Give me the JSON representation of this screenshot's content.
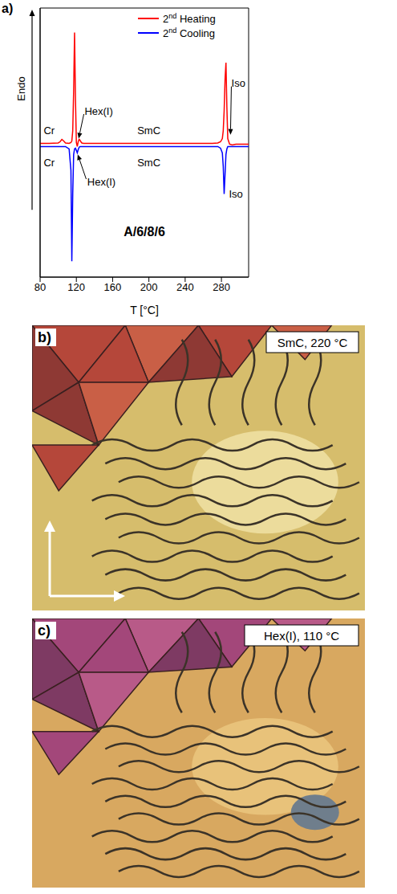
{
  "chart_data": {
    "type": "line",
    "panel": "a)",
    "subtitle": "A/6/8/6",
    "xlabel": "T [°C]",
    "ylabel": "Endo",
    "x": [
      80,
      90,
      100,
      102,
      104,
      106,
      108,
      112,
      114,
      115,
      116,
      117,
      118,
      119,
      120,
      121,
      122,
      123,
      124,
      125,
      126,
      128,
      132,
      140,
      160,
      200,
      240,
      270,
      276,
      279,
      281,
      282,
      283,
      284,
      285,
      286,
      287,
      289,
      292,
      296,
      300,
      305,
      310
    ],
    "series": [
      {
        "name": "2nd Heating",
        "color": "#ff0000",
        "values": [
          0.04,
          0.04,
          0.045,
          0.06,
          0.09,
          0.07,
          0.045,
          0.04,
          0.05,
          0.07,
          0.2,
          0.7,
          1.44,
          0.6,
          0.05,
          0,
          0.06,
          0.09,
          0.08,
          0.06,
          0.045,
          0.04,
          0.04,
          0.04,
          0.04,
          0.04,
          0.04,
          0.04,
          0.045,
          0.06,
          0.1,
          0.2,
          0.45,
          0.85,
          1.06,
          0.5,
          0.1,
          0.03,
          0.02,
          0.03,
          0.03,
          0.03,
          0.03
        ]
      },
      {
        "name": "2nd Cooling",
        "color": "#0000ff",
        "values": [
          0,
          0,
          0,
          0,
          0,
          0,
          0,
          -0.03,
          -0.3,
          -1.45,
          -0.6,
          -0.1,
          -0.03,
          -0.02,
          -0.05,
          -0.08,
          -0.04,
          -0.01,
          0,
          0,
          0,
          0,
          0,
          0,
          0,
          0,
          0,
          0,
          0,
          -0.02,
          -0.08,
          -0.25,
          -0.6,
          -0.35,
          -0.1,
          -0.03,
          0,
          0,
          0,
          0,
          0,
          0,
          0
        ]
      }
    ],
    "xlim": [
      80,
      310
    ],
    "xticks": [
      80,
      120,
      160,
      200,
      240,
      280
    ],
    "ylim": [
      -1.65,
      1.75
    ],
    "tick_labels": "x",
    "legend": "upper right",
    "annotations": [
      {
        "text": "Cr",
        "x": 90,
        "y": 0.2
      },
      {
        "text": "Cr",
        "x": 90,
        "y": -0.2
      },
      {
        "text": "Hex(I)",
        "x": 129,
        "y": 0.45,
        "arrow_to": [
          122.5,
          0.1
        ]
      },
      {
        "text": "Hex(I)",
        "x": 132,
        "y": -0.45,
        "arrow_to": [
          121.5,
          -0.1
        ]
      },
      {
        "text": "SmC",
        "x": 200,
        "y": 0.2
      },
      {
        "text": "SmC",
        "x": 200,
        "y": -0.2
      },
      {
        "text": "Iso",
        "x": 291,
        "y": 0.8,
        "arrow_to": [
          290,
          0.15
        ]
      },
      {
        "text": "Iso",
        "x": 296,
        "y": -0.6
      }
    ]
  },
  "micrographs": [
    {
      "panel": "b)",
      "label": "SmC, 220 °C"
    },
    {
      "panel": "c)",
      "label": "Hex(I), 110 °C"
    }
  ]
}
